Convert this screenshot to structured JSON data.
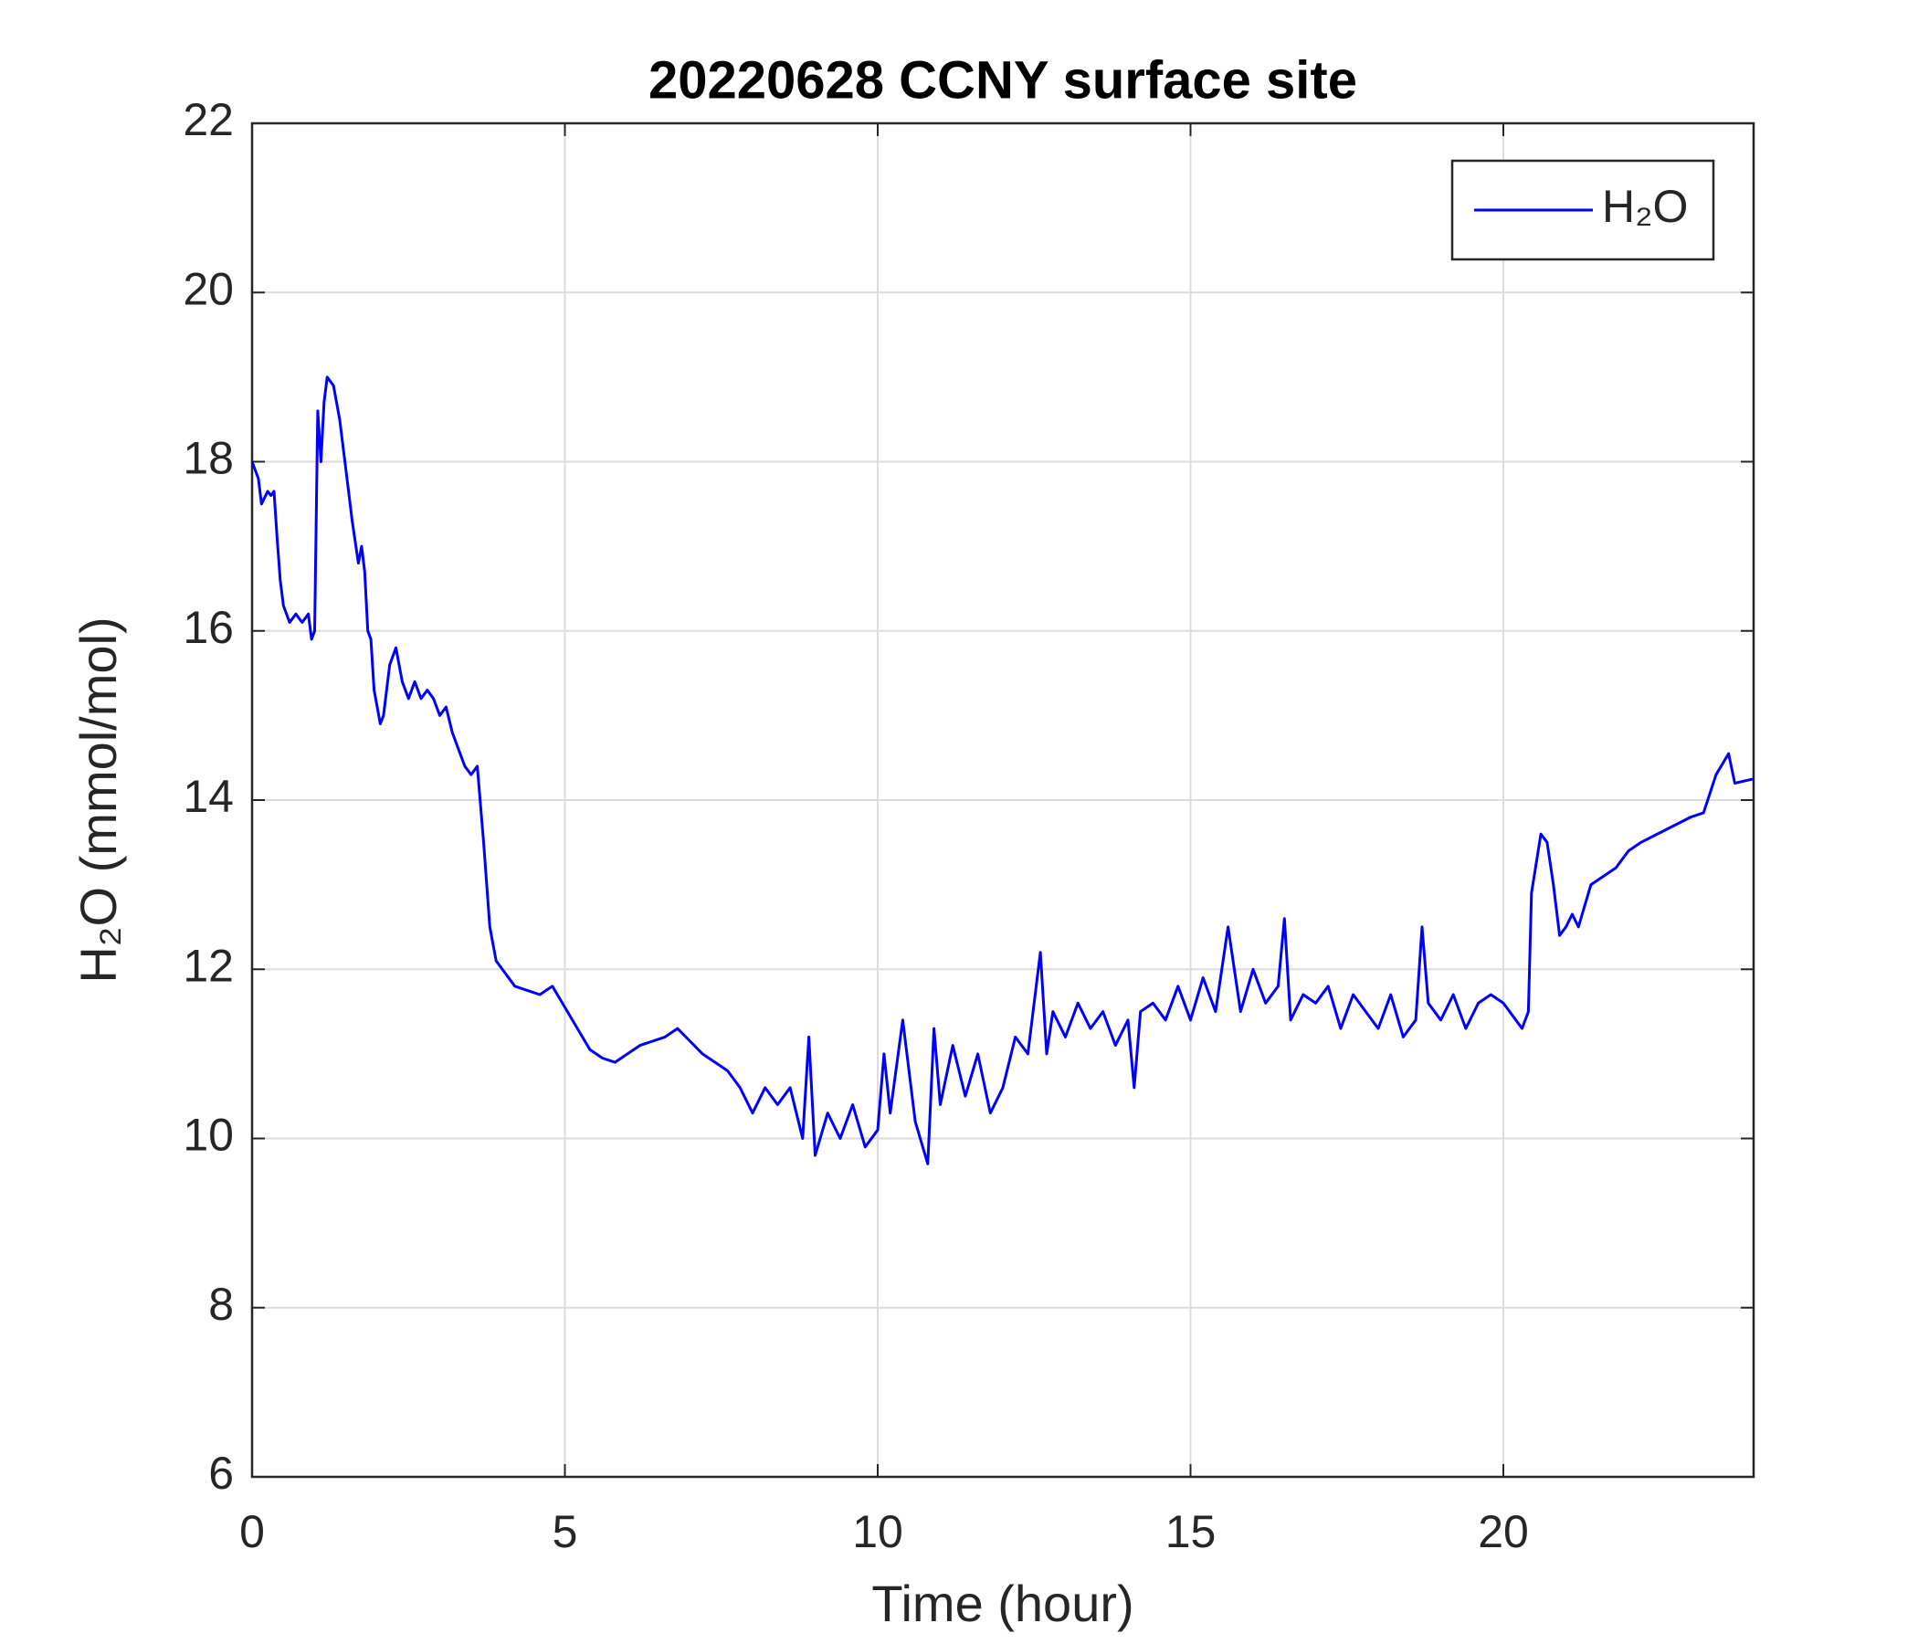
{
  "chart_data": {
    "type": "line",
    "title": "20220628 CCNY surface site",
    "xlabel": "Time (hour)",
    "ylabel": "H₂O (mmol/mol)",
    "xlim": [
      0,
      24
    ],
    "ylim": [
      6,
      22
    ],
    "xticks": [
      0,
      5,
      10,
      15,
      20
    ],
    "yticks": [
      6,
      8,
      10,
      12,
      14,
      16,
      18,
      20,
      22
    ],
    "grid": true,
    "legend": "upper right",
    "x": [
      0,
      0.1,
      0.15,
      0.25,
      0.3,
      0.35,
      0.4,
      0.45,
      0.5,
      0.6,
      0.7,
      0.8,
      0.9,
      0.95,
      1.0,
      1.05,
      1.1,
      1.15,
      1.2,
      1.3,
      1.4,
      1.5,
      1.6,
      1.7,
      1.75,
      1.8,
      1.85,
      1.9,
      1.95,
      2.0,
      2.05,
      2.1,
      2.2,
      2.3,
      2.4,
      2.5,
      2.6,
      2.7,
      2.8,
      2.9,
      3.0,
      3.1,
      3.2,
      3.3,
      3.4,
      3.5,
      3.6,
      3.7,
      3.75,
      3.8,
      3.9,
      4.0,
      4.2,
      4.4,
      4.6,
      4.8,
      5.0,
      5.2,
      5.4,
      5.6,
      5.8,
      6.0,
      6.2,
      6.4,
      6.6,
      6.8,
      7.0,
      7.2,
      7.4,
      7.6,
      7.8,
      8.0,
      8.2,
      8.4,
      8.6,
      8.8,
      8.9,
      9.0,
      9.2,
      9.4,
      9.6,
      9.8,
      10.0,
      10.1,
      10.2,
      10.4,
      10.6,
      10.8,
      10.9,
      11.0,
      11.2,
      11.4,
      11.6,
      11.8,
      12.0,
      12.2,
      12.4,
      12.6,
      12.7,
      12.8,
      13.0,
      13.2,
      13.4,
      13.6,
      13.8,
      14.0,
      14.1,
      14.2,
      14.4,
      14.6,
      14.8,
      15.0,
      15.2,
      15.4,
      15.6,
      15.8,
      16.0,
      16.2,
      16.4,
      16.5,
      16.6,
      16.8,
      17.0,
      17.2,
      17.4,
      17.6,
      17.8,
      18.0,
      18.2,
      18.4,
      18.6,
      18.7,
      18.8,
      19.0,
      19.2,
      19.4,
      19.6,
      19.8,
      20.0,
      20.2,
      20.3,
      20.4,
      20.45,
      20.6,
      20.7,
      20.8,
      20.9,
      21.0,
      21.1,
      21.2,
      21.4,
      21.6,
      21.8,
      22.0,
      22.2,
      22.6,
      23.0,
      23.2,
      23.4,
      23.6,
      23.7,
      24.0
    ],
    "series": [
      {
        "name": "H₂O",
        "color": "#0000ff",
        "values": [
          18.0,
          17.8,
          17.5,
          17.65,
          17.6,
          17.65,
          17.1,
          16.6,
          16.3,
          16.1,
          16.2,
          16.1,
          16.2,
          15.9,
          16.0,
          18.6,
          18.0,
          18.7,
          19.0,
          18.9,
          18.5,
          17.9,
          17.3,
          16.8,
          17.0,
          16.7,
          16.0,
          15.9,
          15.3,
          15.1,
          14.9,
          15.0,
          15.6,
          15.8,
          15.4,
          15.2,
          15.4,
          15.2,
          15.3,
          15.2,
          15.0,
          15.1,
          14.8,
          14.6,
          14.4,
          14.3,
          14.4,
          13.5,
          13.0,
          12.5,
          12.1,
          12.0,
          11.8,
          11.75,
          11.7,
          11.8,
          11.55,
          11.3,
          11.05,
          10.95,
          10.9,
          11.0,
          11.1,
          11.15,
          11.2,
          11.3,
          11.15,
          11.0,
          10.9,
          10.8,
          10.6,
          10.3,
          10.6,
          10.4,
          10.6,
          10.0,
          11.2,
          9.8,
          10.3,
          10.0,
          10.4,
          9.9,
          10.1,
          11.0,
          10.3,
          11.4,
          10.2,
          9.7,
          11.3,
          10.4,
          11.1,
          10.5,
          11.0,
          10.3,
          10.6,
          11.2,
          11.0,
          12.2,
          11.0,
          11.5,
          11.2,
          11.6,
          11.3,
          11.5,
          11.1,
          11.4,
          10.6,
          11.5,
          11.6,
          11.4,
          11.8,
          11.4,
          11.9,
          11.5,
          12.5,
          11.5,
          12.0,
          11.6,
          11.8,
          12.6,
          11.4,
          11.7,
          11.6,
          11.8,
          11.3,
          11.7,
          11.5,
          11.3,
          11.7,
          11.2,
          11.4,
          12.5,
          11.6,
          11.4,
          11.7,
          11.3,
          11.6,
          11.7,
          11.6,
          11.4,
          11.3,
          11.5,
          12.9,
          13.6,
          13.5,
          13.0,
          12.4,
          12.5,
          12.65,
          12.5,
          13.0,
          13.1,
          13.2,
          13.4,
          13.5,
          13.65,
          13.8,
          13.85,
          14.3,
          14.55,
          14.2,
          14.25
        ]
      }
    ]
  }
}
